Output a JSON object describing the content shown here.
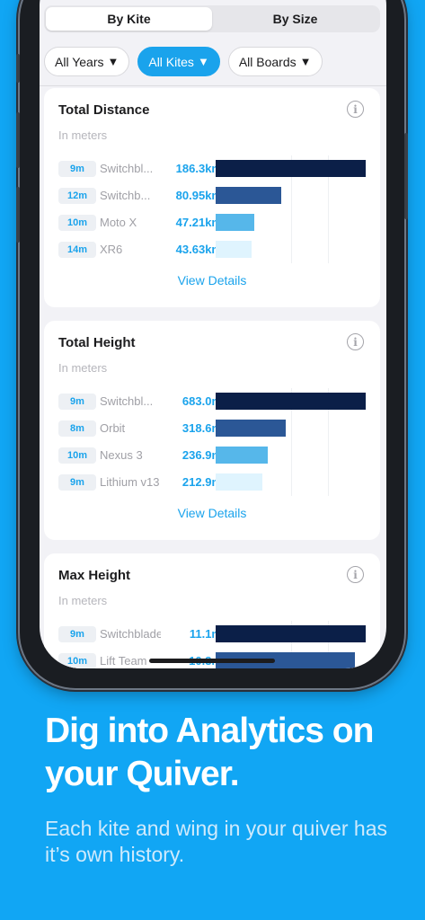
{
  "segmented": {
    "options": [
      "By Kite",
      "By Size"
    ],
    "selected": "By Kite"
  },
  "filters": [
    {
      "label": "All Years",
      "active": false
    },
    {
      "label": "All Kites",
      "active": true
    },
    {
      "label": "All Boards",
      "active": false
    }
  ],
  "caret_glyph": "▼",
  "info_glyph": "i",
  "cards": [
    {
      "title": "Total Distance",
      "subtitle": "In meters",
      "rows": [
        {
          "size": "9m",
          "name": "Switchbl...",
          "value": "186.3km",
          "fraction": 1.0,
          "color": "#0b1f48"
        },
        {
          "size": "12m",
          "name": "Switchb...",
          "value": "80.95km",
          "fraction": 0.44,
          "color": "#2b5796"
        },
        {
          "size": "10m",
          "name": "Moto X",
          "value": "47.21km",
          "fraction": 0.26,
          "color": "#56b7ea"
        },
        {
          "size": "14m",
          "name": "XR6",
          "value": "43.63km",
          "fraction": 0.24,
          "color": "#dff4fe"
        }
      ],
      "link": "View Details"
    },
    {
      "title": "Total Height",
      "subtitle": "In meters",
      "rows": [
        {
          "size": "9m",
          "name": "Switchbl...",
          "value": "683.0m",
          "fraction": 1.0,
          "color": "#0b1f48"
        },
        {
          "size": "8m",
          "name": "Orbit",
          "value": "318.6m",
          "fraction": 0.47,
          "color": "#2b5796"
        },
        {
          "size": "10m",
          "name": "Nexus 3",
          "value": "236.9m",
          "fraction": 0.35,
          "color": "#56b7ea"
        },
        {
          "size": "9m",
          "name": "Lithium v13",
          "value": "212.9m",
          "fraction": 0.31,
          "color": "#dff4fe"
        }
      ],
      "link": "View Details"
    },
    {
      "title": "Max Height",
      "subtitle": "In meters",
      "rows": [
        {
          "size": "9m",
          "name": "Switchblade",
          "value": "11.1m",
          "fraction": 1.0,
          "color": "#0b1f48"
        },
        {
          "size": "10m",
          "name": "Lift Team",
          "value": "10.3m",
          "fraction": 0.93,
          "color": "#2b5796"
        }
      ],
      "link": ""
    }
  ],
  "promo": {
    "headline": "Dig into Analytics on your Quiver.",
    "subline": "Each kite and wing in your quiver has it’s own history."
  },
  "colors": {
    "background": "#11a6f4",
    "accent": "#1aa3ec"
  }
}
